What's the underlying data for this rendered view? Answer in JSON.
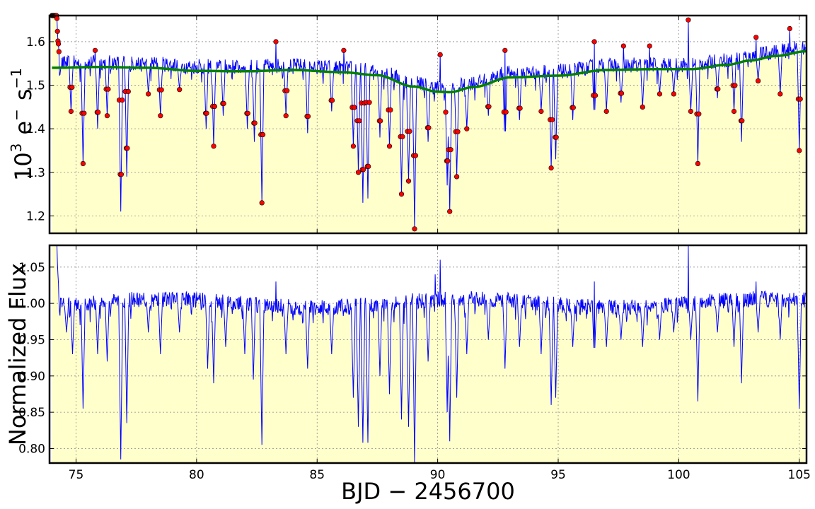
{
  "figure": {
    "xlabel": "BJD − 2456700",
    "colors": {
      "fill": "#ffffcc",
      "flux_line": "#0000ff",
      "trend_line": "#008000",
      "outlier_marker": "#ff0000"
    }
  },
  "chart_data": [
    {
      "type": "line",
      "title": "",
      "ylabel": "10³ e⁻ s⁻¹",
      "ylabel_parts": {
        "base": "10",
        "exp": "3",
        "unit1": "e",
        "unit1_sup": "−",
        "unit2": "s",
        "unit2_sup": "−1"
      },
      "xlim": [
        73.9,
        105.3
      ],
      "ylim": [
        1.16,
        1.66
      ],
      "x_ticks": [
        75,
        80,
        85,
        90,
        95,
        100,
        105
      ],
      "y_ticks": [
        "1.2",
        "1.3",
        "1.4",
        "1.5",
        "1.6"
      ],
      "grid": true,
      "series": [
        {
          "role": "raw flux",
          "dips": [
            [
              74.8,
              1.44
            ],
            [
              75.3,
              1.32
            ],
            [
              75.9,
              1.4
            ],
            [
              76.3,
              1.43
            ],
            [
              76.85,
              1.21
            ],
            [
              77.1,
              1.29
            ],
            [
              78.0,
              1.48
            ],
            [
              78.5,
              1.43
            ],
            [
              79.3,
              1.49
            ],
            [
              80.4,
              1.4
            ],
            [
              80.7,
              1.36
            ],
            [
              81.1,
              1.43
            ],
            [
              82.1,
              1.4
            ],
            [
              82.4,
              1.37
            ],
            [
              82.7,
              1.23
            ],
            [
              83.7,
              1.43
            ],
            [
              84.6,
              1.39
            ],
            [
              85.6,
              1.44
            ],
            [
              86.5,
              1.36
            ],
            [
              86.7,
              1.3
            ],
            [
              86.9,
              1.23
            ],
            [
              87.1,
              1.24
            ],
            [
              87.6,
              1.38
            ],
            [
              88.0,
              1.36
            ],
            [
              88.5,
              1.25
            ],
            [
              88.8,
              1.28
            ],
            [
              89.05,
              1.17
            ],
            [
              89.6,
              1.37
            ],
            [
              90.4,
              1.27
            ],
            [
              90.5,
              1.21
            ],
            [
              90.8,
              1.29
            ],
            [
              91.2,
              1.4
            ],
            [
              92.1,
              1.43
            ],
            [
              92.8,
              1.35
            ],
            [
              93.4,
              1.42
            ],
            [
              94.3,
              1.44
            ],
            [
              94.7,
              1.31
            ],
            [
              94.9,
              1.33
            ],
            [
              95.6,
              1.42
            ],
            [
              96.5,
              1.41
            ],
            [
              97.0,
              1.44
            ],
            [
              97.6,
              1.46
            ],
            [
              98.5,
              1.45
            ],
            [
              99.2,
              1.48
            ],
            [
              99.8,
              1.48
            ],
            [
              100.5,
              1.44
            ],
            [
              100.8,
              1.32
            ],
            [
              101.6,
              1.47
            ],
            [
              102.3,
              1.44
            ],
            [
              102.6,
              1.37
            ],
            [
              103.3,
              1.51
            ],
            [
              104.2,
              1.48
            ],
            [
              105.0,
              1.35
            ]
          ],
          "spikes": [
            [
              75.8,
              1.58
            ],
            [
              79.1,
              1.56
            ],
            [
              80.1,
              1.56
            ],
            [
              83.3,
              1.6
            ],
            [
              86.1,
              1.58
            ],
            [
              90.1,
              1.57
            ],
            [
              92.8,
              1.58
            ],
            [
              96.5,
              1.6
            ],
            [
              97.7,
              1.59
            ],
            [
              98.8,
              1.59
            ],
            [
              100.4,
              1.65
            ],
            [
              103.2,
              1.61
            ],
            [
              104.6,
              1.63
            ]
          ]
        },
        {
          "role": "trend",
          "x": [
            74.0,
            76.0,
            78.0,
            80.0,
            82.0,
            84.0,
            86.0,
            87.5,
            89.0,
            90.0,
            90.5,
            91.5,
            93.0,
            95.0,
            97.0,
            99.0,
            100.5,
            102.0,
            103.0,
            104.0,
            105.3
          ],
          "y": [
            1.54,
            1.542,
            1.54,
            1.533,
            1.532,
            1.535,
            1.53,
            1.523,
            1.497,
            1.485,
            1.484,
            1.496,
            1.518,
            1.522,
            1.535,
            1.537,
            1.537,
            1.547,
            1.557,
            1.567,
            1.578
          ]
        }
      ]
    },
    {
      "type": "line",
      "title": "",
      "ylabel": "Normalized Flux",
      "xlim": [
        73.9,
        105.3
      ],
      "ylim": [
        0.78,
        1.08
      ],
      "x_ticks": [
        75,
        80,
        85,
        90,
        95,
        100,
        105
      ],
      "x_tick_labels": [
        "75",
        "80",
        "85",
        "90",
        "95",
        "100",
        "105"
      ],
      "y_ticks": [
        "0.80",
        "0.85",
        "0.90",
        "0.95",
        "1.00",
        "1.05"
      ],
      "grid": true,
      "series": [
        {
          "role": "normalized flux",
          "dips": [
            [
              74.6,
              0.96
            ],
            [
              74.85,
              0.93
            ],
            [
              75.3,
              0.855
            ],
            [
              75.9,
              0.93
            ],
            [
              76.3,
              0.92
            ],
            [
              76.85,
              0.785
            ],
            [
              77.1,
              0.835
            ],
            [
              78.0,
              0.96
            ],
            [
              78.5,
              0.93
            ],
            [
              79.3,
              0.96
            ],
            [
              80.45,
              0.91
            ],
            [
              80.7,
              0.89
            ],
            [
              81.2,
              0.94
            ],
            [
              82.0,
              0.93
            ],
            [
              82.35,
              0.895
            ],
            [
              82.7,
              0.805
            ],
            [
              83.7,
              0.93
            ],
            [
              84.6,
              0.91
            ],
            [
              85.6,
              0.93
            ],
            [
              86.5,
              0.87
            ],
            [
              86.7,
              0.83
            ],
            [
              86.9,
              0.808
            ],
            [
              87.1,
              0.808
            ],
            [
              87.6,
              0.9
            ],
            [
              88.0,
              0.875
            ],
            [
              88.5,
              0.84
            ],
            [
              88.8,
              0.83
            ],
            [
              89.05,
              0.78
            ],
            [
              89.6,
              0.92
            ],
            [
              90.4,
              0.85
            ],
            [
              90.5,
              0.81
            ],
            [
              90.8,
              0.87
            ],
            [
              91.2,
              0.93
            ],
            [
              92.1,
              0.95
            ],
            [
              92.8,
              0.91
            ],
            [
              93.4,
              0.94
            ],
            [
              94.3,
              0.93
            ],
            [
              94.7,
              0.86
            ],
            [
              94.9,
              0.87
            ],
            [
              95.6,
              0.94
            ],
            [
              96.5,
              0.92
            ],
            [
              97.0,
              0.94
            ],
            [
              97.6,
              0.95
            ],
            [
              98.5,
              0.94
            ],
            [
              99.2,
              0.95
            ],
            [
              99.8,
              0.96
            ],
            [
              100.5,
              0.95
            ],
            [
              100.8,
              0.865
            ],
            [
              101.6,
              0.96
            ],
            [
              102.3,
              0.94
            ],
            [
              102.6,
              0.89
            ],
            [
              103.3,
              0.96
            ],
            [
              104.2,
              0.95
            ],
            [
              105.0,
              0.855
            ]
          ],
          "spikes": [
            [
              89.9,
              1.04
            ],
            [
              90.1,
              1.06
            ],
            [
              100.4,
              1.08
            ],
            [
              83.3,
              1.03
            ],
            [
              96.5,
              1.03
            ],
            [
              103.2,
              1.03
            ]
          ]
        }
      ]
    }
  ]
}
